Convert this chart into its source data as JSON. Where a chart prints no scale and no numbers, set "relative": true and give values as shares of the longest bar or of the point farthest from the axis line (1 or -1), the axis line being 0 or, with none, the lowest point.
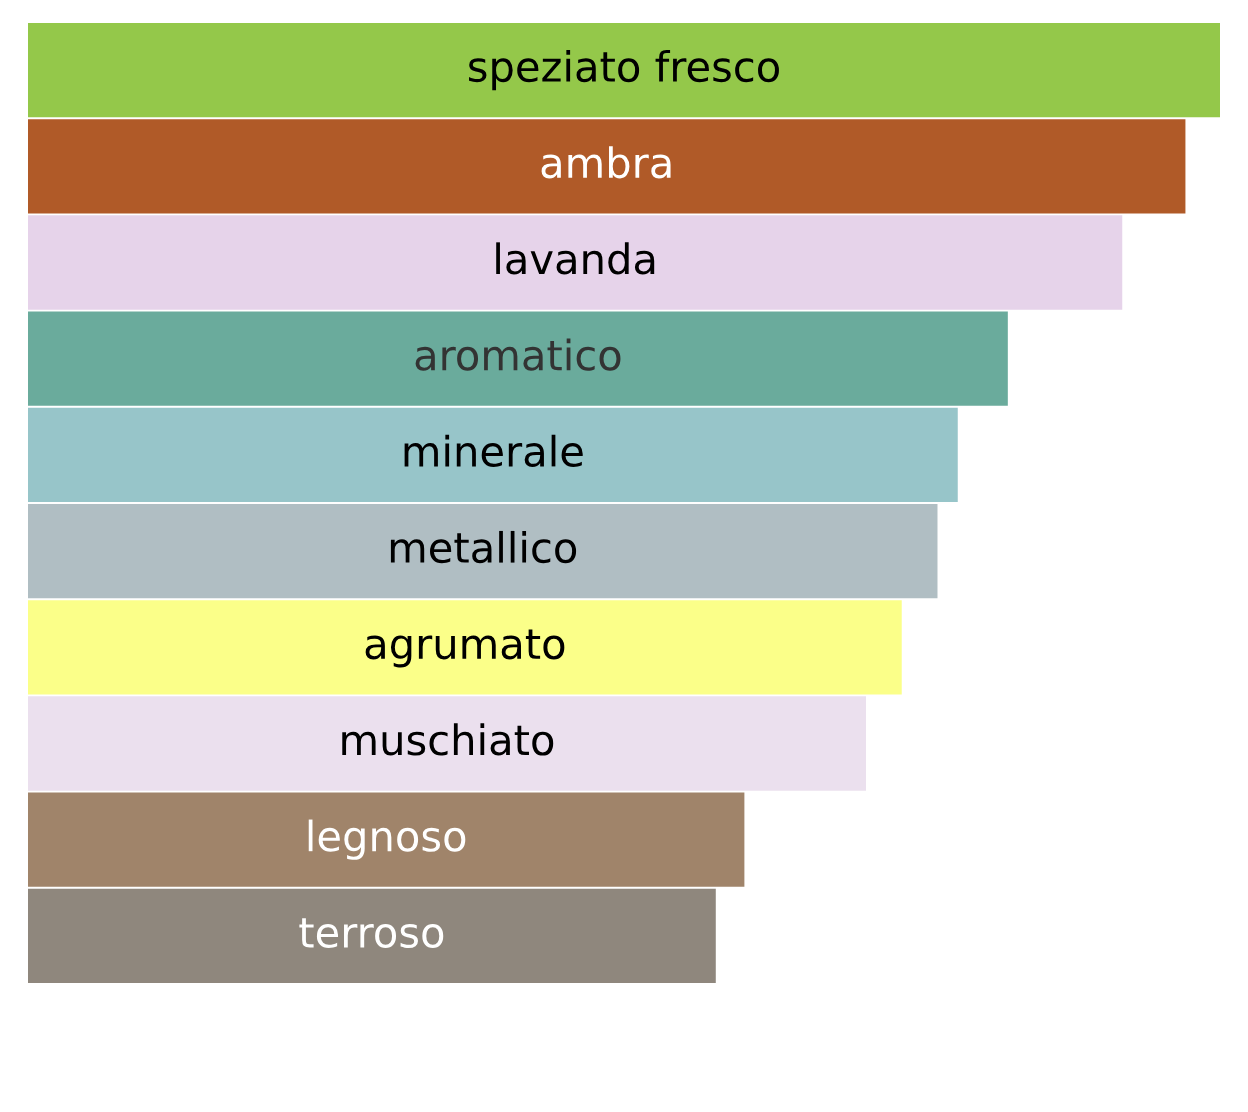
{
  "chart_data": {
    "type": "bar",
    "orientation": "horizontal",
    "relative": true,
    "data_labels": false,
    "categories": [
      "speziato fresco",
      "ambra",
      "lavanda",
      "aromatico",
      "minerale",
      "metallico",
      "agrumato",
      "muschiato",
      "legnoso",
      "terroso"
    ],
    "values": [
      1,
      0.971,
      0.918,
      0.822,
      0.78,
      0.763,
      0.733,
      0.703,
      0.601,
      0.577
    ],
    "colors": [
      "#94c84a",
      "#b05a28",
      "#e6d3ea",
      "#6aab9c",
      "#97c5c9",
      "#b0bec3",
      "#fbff89",
      "#ebe0ee",
      "#a0846a",
      "#8f877d"
    ]
  }
}
